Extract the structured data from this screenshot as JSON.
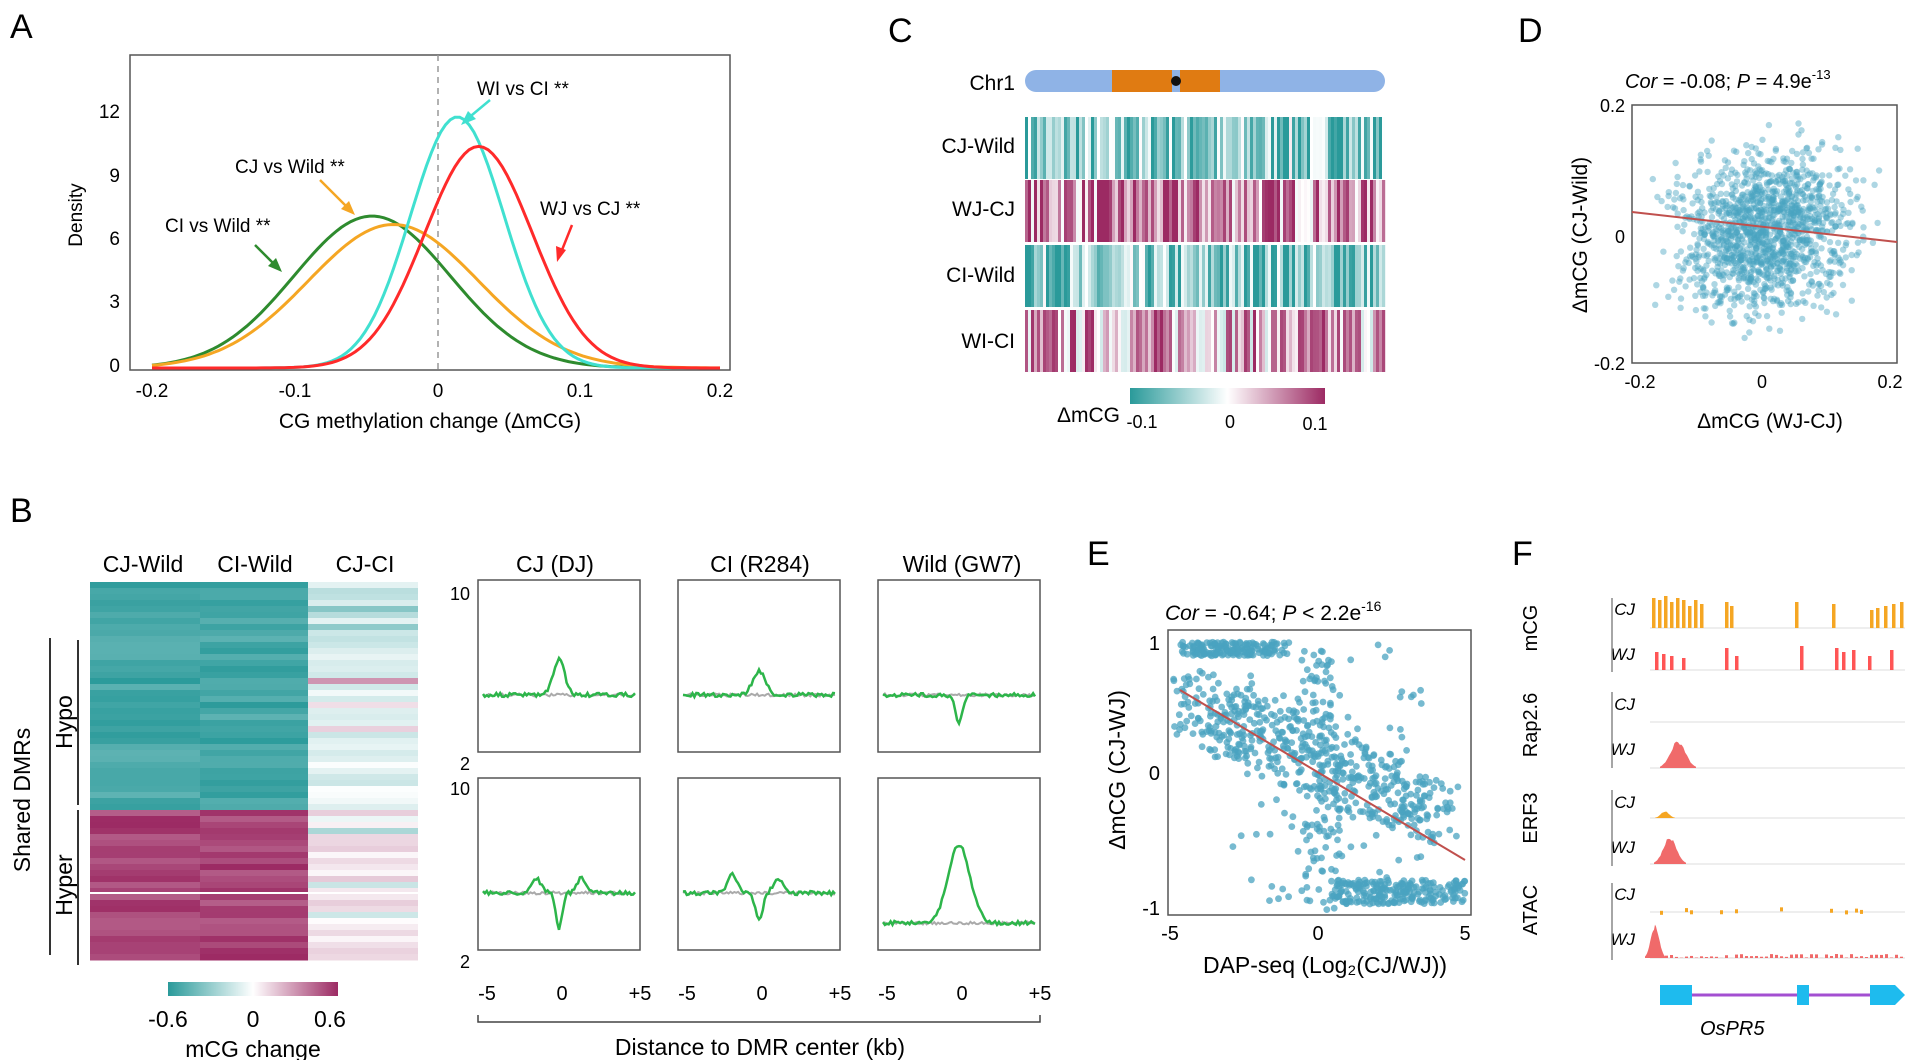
{
  "panels": {
    "A": {
      "letter": "A",
      "ylabel": "Density",
      "xlabel": "CG methylation change (ΔmCG)",
      "xticks": [
        "-0.2",
        "-0.1",
        "0",
        "0.1",
        "0.2"
      ],
      "yticks": [
        "0",
        "3",
        "6",
        "9",
        "12"
      ],
      "labels": {
        "ci_wild": "CI vs Wild **",
        "cj_wild": "CJ vs Wild **",
        "wi_ci": "WI vs CI **",
        "wj_cj": "WJ vs CJ **"
      }
    },
    "B": {
      "letter": "B",
      "col_headers": [
        "CJ-Wild",
        "CI-Wild",
        "CJ-CI"
      ],
      "row_group": "Shared DMRs",
      "hypo": "Hypo",
      "hyper": "Hyper",
      "legend_label": "mCG change",
      "legend_ticks": [
        "-0.6",
        "0",
        "0.6"
      ],
      "profile_titles": [
        "CJ (DJ)",
        "CI (R284)",
        "Wild (GW7)"
      ],
      "profile_yticks_top": [
        "10",
        "2"
      ],
      "profile_yticks_bottom": [
        "10",
        "2"
      ],
      "profile_xticks": [
        "-5",
        "0",
        "+5"
      ],
      "profile_xlabel": "Distance to DMR center (kb)"
    },
    "C": {
      "letter": "C",
      "chrom": "Chr1",
      "rows": [
        "CJ-Wild",
        "WJ-CJ",
        "CI-Wild",
        "WI-CI"
      ],
      "legend_label": "ΔmCG",
      "legend_ticks": [
        "-0.1",
        "0",
        "0.1"
      ]
    },
    "D": {
      "letter": "D",
      "stat_cor": "Cor",
      "stat_text": " = -0.08; ",
      "stat_p": "P",
      "stat_p_text": " = 4.9e",
      "stat_exp": "-13",
      "ylabel": "ΔmCG (CJ-Wild)",
      "xlabel": "ΔmCG (WJ-CJ)",
      "xticks": [
        "-0.2",
        "0",
        "0.2"
      ],
      "yticks": [
        "0.2",
        "0",
        "-0.2"
      ]
    },
    "E": {
      "letter": "E",
      "stat_cor": "Cor",
      "stat_text": " = -0.64; ",
      "stat_p": "P",
      "stat_p_text": " < 2.2e",
      "stat_exp": "-16",
      "ylabel": "ΔmCG (CJ-WJ)",
      "xlabel": "DAP-seq (Log₂(CJ/WJ))",
      "xticks": [
        "-5",
        "0",
        "5"
      ],
      "yticks": [
        "1",
        "0",
        "-1"
      ]
    },
    "F": {
      "letter": "F",
      "tracks": [
        {
          "name": "mCG",
          "rows": [
            "CJ",
            "WJ"
          ]
        },
        {
          "name": "Rap2.6",
          "rows": [
            "CJ",
            "WJ"
          ]
        },
        {
          "name": "ERF3",
          "rows": [
            "CJ",
            "WJ"
          ]
        },
        {
          "name": "ATAC",
          "rows": [
            "CJ",
            "WJ"
          ]
        }
      ],
      "gene": "OsPR5"
    }
  },
  "colors": {
    "teal": "#2a9a9a",
    "magenta": "#9c2a63",
    "green": "#2e8b2e",
    "orange": "#f5a623",
    "cyan": "#40e0d0",
    "red": "#ff2a2a",
    "scatter": "#4aa3c0",
    "profile_green": "#2db54a",
    "gene_blue": "#1ebbee",
    "gene_line": "#a34fd1"
  }
}
